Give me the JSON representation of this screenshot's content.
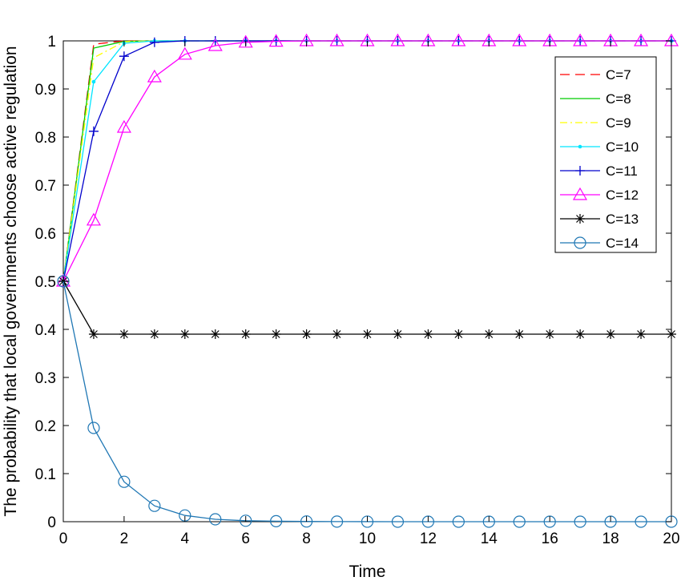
{
  "chart_data": {
    "type": "line",
    "title": "",
    "xlabel": "Time",
    "ylabel": "The probability that local governments choose active regulation",
    "xlim": [
      0,
      20
    ],
    "ylim": [
      0,
      1
    ],
    "xticks": [
      "0",
      "2",
      "4",
      "6",
      "8",
      "10",
      "12",
      "14",
      "16",
      "18",
      "20"
    ],
    "yticks": [
      "0",
      "0.1",
      "0.2",
      "0.3",
      "0.4",
      "0.5",
      "0.6",
      "0.7",
      "0.8",
      "0.9",
      "1"
    ],
    "grid": false,
    "legend_position": "top-right",
    "x": [
      0,
      1,
      2,
      3,
      4,
      5,
      6,
      7,
      8,
      9,
      10,
      11,
      12,
      13,
      14,
      15,
      16,
      17,
      18,
      19,
      20
    ],
    "series": [
      {
        "name": "C=7",
        "color": "#ff0000",
        "style": "dashed",
        "marker": "none",
        "values": [
          0.5,
          0.993,
          1,
          1,
          1,
          1,
          1,
          1,
          1,
          1,
          1,
          1,
          1,
          1,
          1,
          1,
          1,
          1,
          1,
          1,
          1
        ]
      },
      {
        "name": "C=8",
        "color": "#00cc00",
        "style": "solid",
        "marker": "none",
        "values": [
          0.5,
          0.985,
          0.999,
          1,
          1,
          1,
          1,
          1,
          1,
          1,
          1,
          1,
          1,
          1,
          1,
          1,
          1,
          1,
          1,
          1,
          1
        ]
      },
      {
        "name": "C=9",
        "color": "#ffff00",
        "style": "dashdot",
        "marker": "none",
        "values": [
          0.5,
          0.965,
          0.998,
          1,
          1,
          1,
          1,
          1,
          1,
          1,
          1,
          1,
          1,
          1,
          1,
          1,
          1,
          1,
          1,
          1,
          1
        ]
      },
      {
        "name": "C=10",
        "color": "#00e5ff",
        "style": "solid",
        "marker": "dot",
        "values": [
          0.5,
          0.915,
          0.995,
          1,
          1,
          1,
          1,
          1,
          1,
          1,
          1,
          1,
          1,
          1,
          1,
          1,
          1,
          1,
          1,
          1,
          1
        ]
      },
      {
        "name": "C=11",
        "color": "#0000cc",
        "style": "solid",
        "marker": "plus",
        "values": [
          0.5,
          0.812,
          0.968,
          0.997,
          1,
          1,
          1,
          1,
          1,
          1,
          1,
          1,
          1,
          1,
          1,
          1,
          1,
          1,
          1,
          1,
          1
        ]
      },
      {
        "name": "C=12",
        "color": "#ff00ff",
        "style": "solid",
        "marker": "triangle",
        "values": [
          0.5,
          0.627,
          0.82,
          0.925,
          0.972,
          0.99,
          0.997,
          0.999,
          1,
          1,
          1,
          1,
          1,
          1,
          1,
          1,
          1,
          1,
          1,
          1,
          1
        ]
      },
      {
        "name": "C=13",
        "color": "#000000",
        "style": "solid",
        "marker": "asterisk",
        "values": [
          0.5,
          0.39,
          0.39,
          0.39,
          0.39,
          0.39,
          0.39,
          0.39,
          0.39,
          0.39,
          0.39,
          0.39,
          0.39,
          0.39,
          0.39,
          0.39,
          0.39,
          0.39,
          0.39,
          0.39,
          0.39
        ]
      },
      {
        "name": "C=14",
        "color": "#1f77b4",
        "style": "solid",
        "marker": "circle",
        "values": [
          0.5,
          0.195,
          0.083,
          0.033,
          0.013,
          0.005,
          0.002,
          0.001,
          0.0005,
          0.0002,
          0.0001,
          0,
          0,
          0,
          0,
          0,
          0,
          0,
          0,
          0,
          0
        ]
      }
    ]
  }
}
